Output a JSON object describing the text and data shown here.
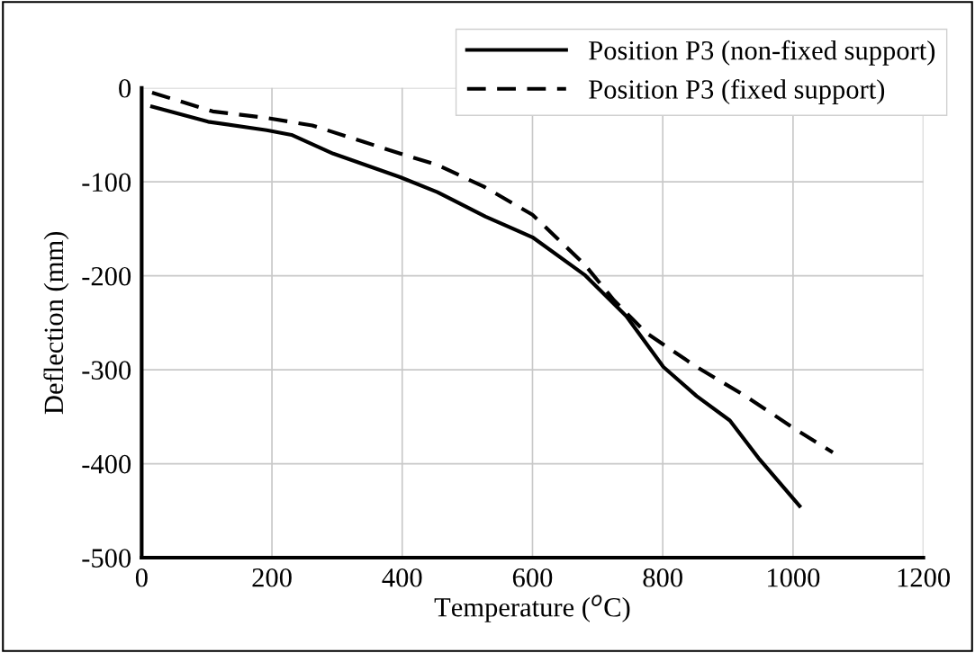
{
  "chart_data": {
    "type": "line",
    "xlabel": "Temperature ($^{o}$C)",
    "ylabel": "Deflection (mm)",
    "xlim": [
      0,
      1200
    ],
    "xticks": [
      0,
      200,
      400,
      600,
      800,
      1000,
      1200
    ],
    "ylim": [
      -500,
      0
    ],
    "yticks": [
      -500,
      -400,
      -300,
      -200,
      -100,
      0
    ],
    "grid": true,
    "legend": "top right",
    "marker": "none",
    "series": [
      {
        "name": "Position P3 (non-fixed support)",
        "color": "#000000",
        "line_style": "solid",
        "x": [
          16,
          102,
          192,
          230,
          294,
          397,
          454,
          528,
          600,
          680,
          744,
          801,
          852,
          903,
          947,
          1010
        ],
        "values": [
          -20,
          -36,
          -45,
          -50,
          -70,
          -95,
          -111,
          -137,
          -159,
          -199,
          -243,
          -297,
          -328,
          -354,
          -394,
          -445
        ]
      },
      {
        "name": "Position P3 (fixed support)",
        "color": "#000000",
        "line_style": "dashed",
        "x": [
          16,
          109,
          192,
          262,
          339,
          397,
          454,
          525,
          600,
          680,
          725,
          775,
          852,
          927,
          1003,
          1061
        ],
        "values": [
          -5,
          -25,
          -32,
          -40,
          -57,
          -70,
          -82,
          -105,
          -135,
          -188,
          -226,
          -261,
          -297,
          -328,
          -363,
          -388
        ]
      }
    ]
  }
}
